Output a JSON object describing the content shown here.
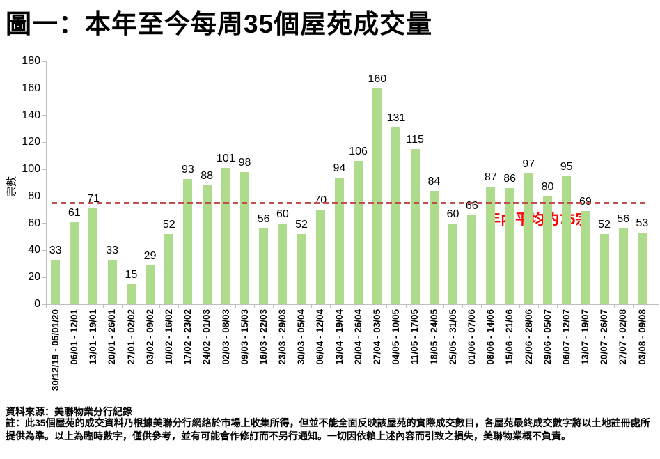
{
  "header": {
    "title": "圖一：本年至今每周35個屋苑成交量"
  },
  "chart_data": {
    "type": "bar",
    "title": "圖一：本年至今每周35個屋苑成交量",
    "xlabel": "",
    "ylabel": "宗數",
    "ylim": [
      0,
      180
    ],
    "ytick_step": 20,
    "yticks": [
      0,
      20,
      40,
      60,
      80,
      100,
      120,
      140,
      160,
      180
    ],
    "grid": false,
    "legend": false,
    "categories": [
      "30/12/19 - 05/01/20",
      "06/01 - 12/01",
      "13/01 - 19/01",
      "20/01 - 26/01",
      "27/01 - 02/02",
      "03/02 - 09/02",
      "10/02 - 16/02",
      "17/02 - 23/02",
      "24/02 - 01/03",
      "02/03 - 08/03",
      "09/03 - 15/03",
      "16/03 - 22/03",
      "23/03 - 29/03",
      "30/03 - 05/04",
      "06/04 - 12/04",
      "13/04 - 19/04",
      "20/04 - 26/04",
      "27/04 - 03/05",
      "04/05 - 10/05",
      "11/05 - 17/05",
      "18/05 - 24/05",
      "25/05 - 31/05",
      "01/06 - 07/06",
      "08/06 - 14/06",
      "15/06 - 21/06",
      "22/06 - 28/06",
      "29/06 - 05/07",
      "06/07 - 12/07",
      "13/07 - 19/07",
      "20/07 - 26/07",
      "27/07 - 02/08",
      "03/08 - 09/08"
    ],
    "values": [
      33,
      61,
      71,
      33,
      15,
      29,
      52,
      93,
      88,
      101,
      98,
      56,
      60,
      52,
      70,
      94,
      106,
      160,
      131,
      115,
      84,
      60,
      66,
      87,
      86,
      97,
      80,
      95,
      69,
      52,
      56,
      53
    ],
    "average_line": {
      "value": 75,
      "label": "年內平均約75宗"
    },
    "colors": {
      "bar_fill": "#AEDB8C",
      "average_line": "#C0504D",
      "average_label_text": "#FF0000",
      "axis": "#BFBFBF",
      "text": "#000000"
    }
  },
  "footer": {
    "source": "資料來源：美聯物業分行紀錄",
    "note": "註：此35個屋苑的成交資料乃根據美聯分行網絡於市場上收集所得，但並不能全面反映該屋苑的實際成交數目，各屋苑最終成交數字將以土地註冊處所提供為準。以上為臨時數字，僅供參考，並有可能會作修訂而不另行通知。一切因依賴上述內容而引致之損失，美聯物業概不負責。"
  }
}
